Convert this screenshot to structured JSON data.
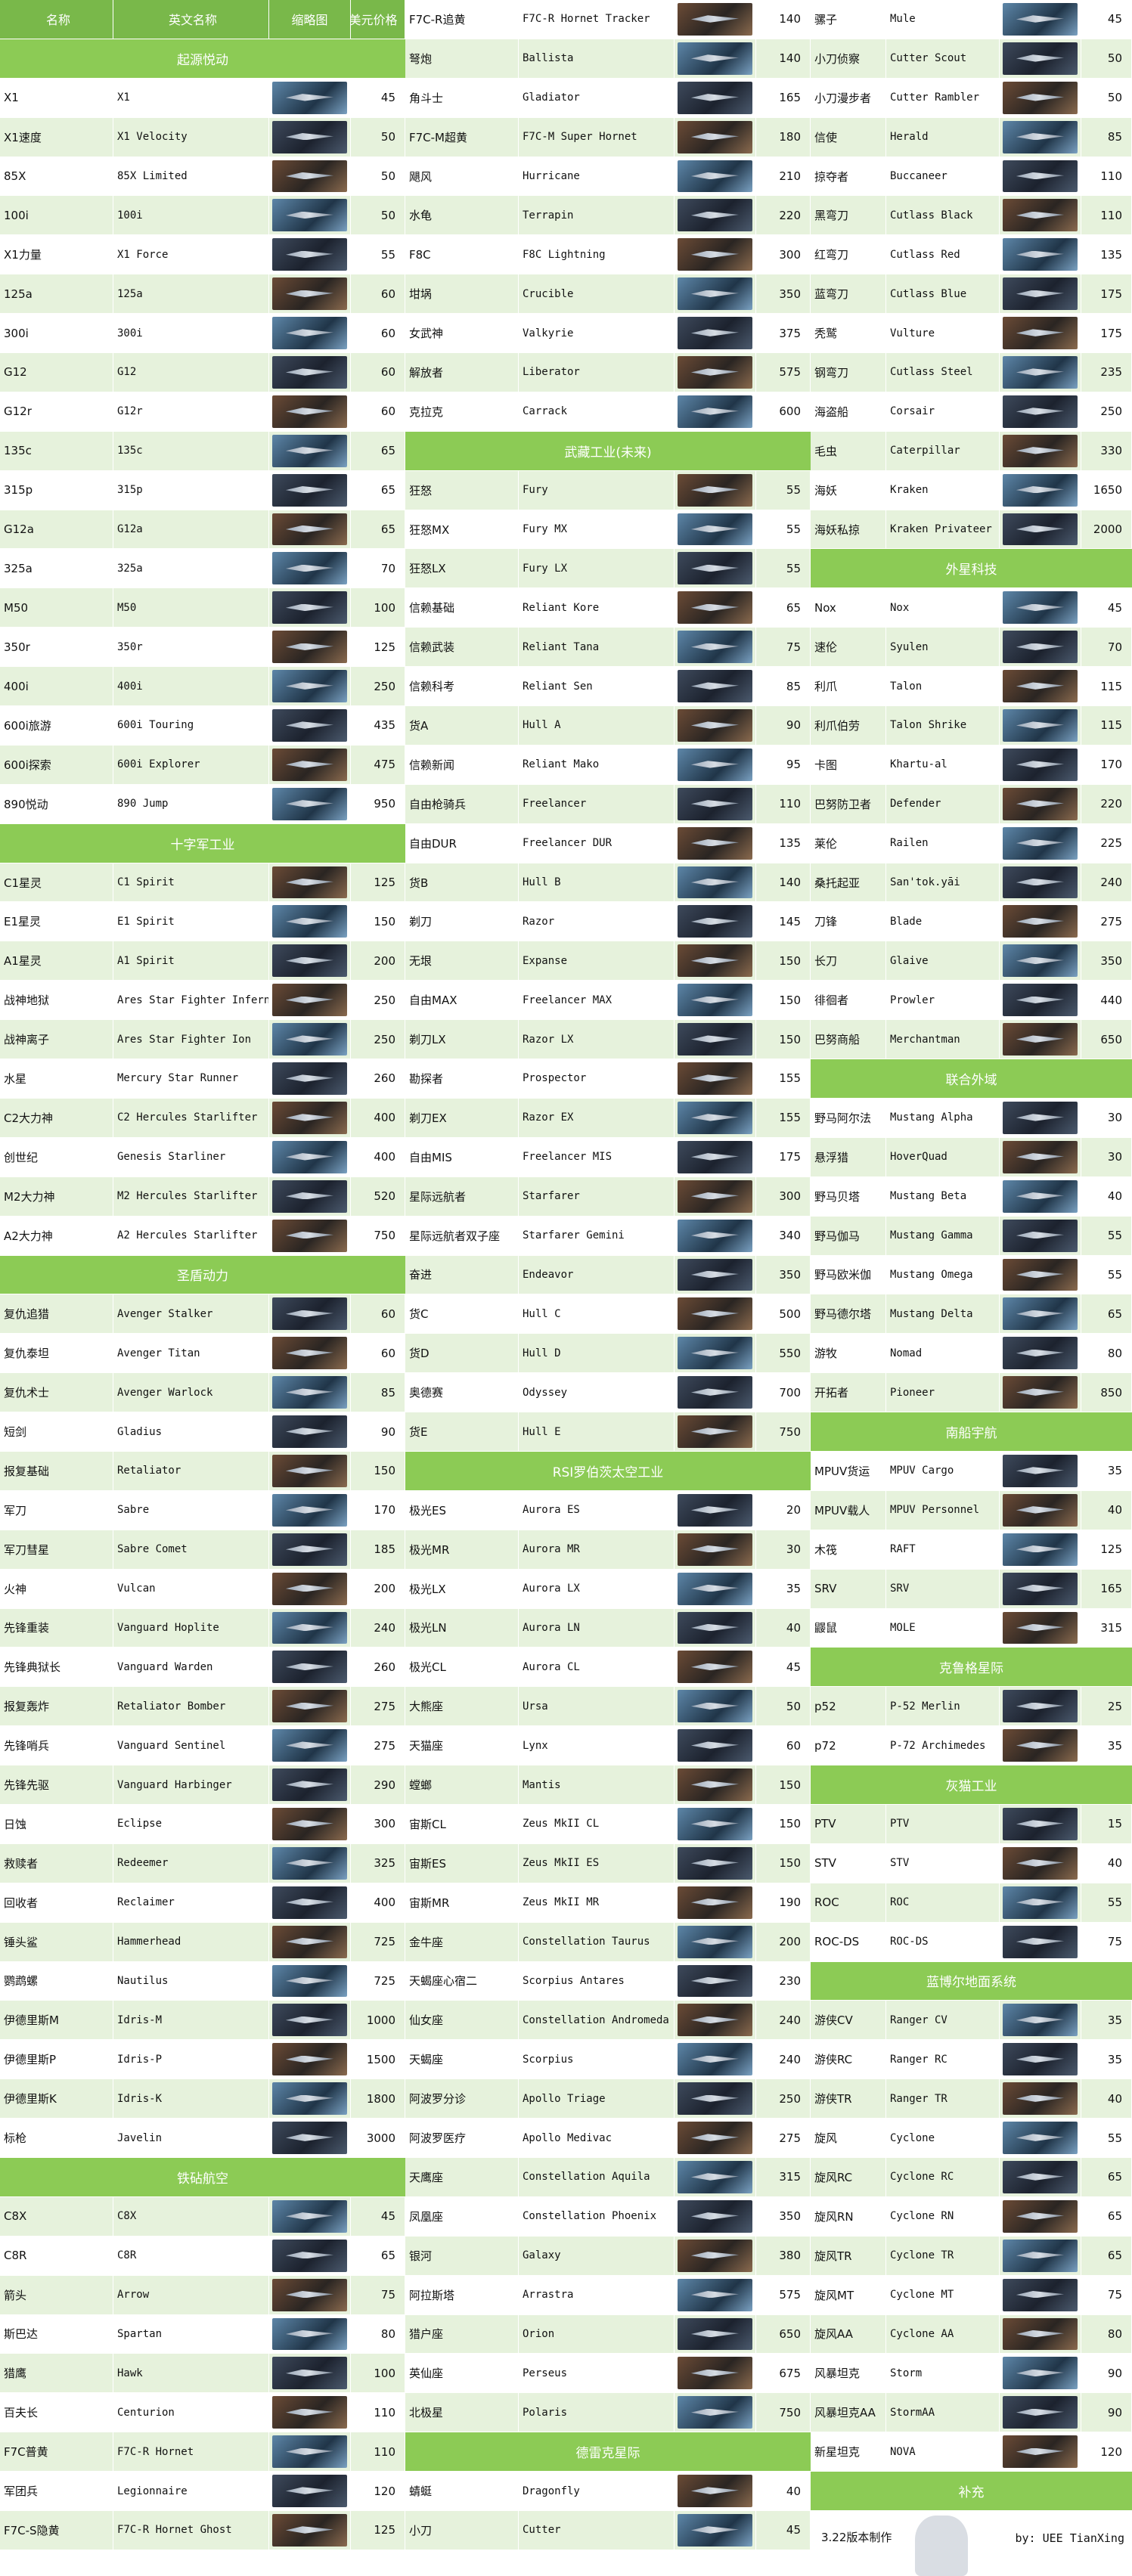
{
  "header": {
    "cn": "名称",
    "en": "英文名称",
    "thumb": "缩略图",
    "price": "美元价格"
  },
  "columns": [
    [
      {
        "t": "h"
      },
      {
        "t": "s",
        "label": "起源悦动"
      },
      {
        "t": "r",
        "cn": "X1",
        "en": "X1",
        "p": "45"
      },
      {
        "t": "r",
        "cn": "X1速度",
        "en": "X1 Velocity",
        "p": "50"
      },
      {
        "t": "r",
        "cn": "85X",
        "en": "85X Limited",
        "p": "50"
      },
      {
        "t": "r",
        "cn": "100i",
        "en": "100i",
        "p": "50"
      },
      {
        "t": "r",
        "cn": "X1力量",
        "en": "X1 Force",
        "p": "55"
      },
      {
        "t": "r",
        "cn": "125a",
        "en": "125a",
        "p": "60"
      },
      {
        "t": "r",
        "cn": "300i",
        "en": "300i",
        "p": "60"
      },
      {
        "t": "r",
        "cn": "G12",
        "en": "G12",
        "p": "60"
      },
      {
        "t": "r",
        "cn": "G12r",
        "en": "G12r",
        "p": "60"
      },
      {
        "t": "r",
        "cn": "135c",
        "en": "135c",
        "p": "65"
      },
      {
        "t": "r",
        "cn": "315p",
        "en": "315p",
        "p": "65"
      },
      {
        "t": "r",
        "cn": "G12a",
        "en": "G12a",
        "p": "65"
      },
      {
        "t": "r",
        "cn": "325a",
        "en": "325a",
        "p": "70"
      },
      {
        "t": "r",
        "cn": "M50",
        "en": "M50",
        "p": "100"
      },
      {
        "t": "r",
        "cn": "350r",
        "en": "350r",
        "p": "125"
      },
      {
        "t": "r",
        "cn": "400i",
        "en": "400i",
        "p": "250"
      },
      {
        "t": "r",
        "cn": "600i旅游",
        "en": "600i Touring",
        "p": "435"
      },
      {
        "t": "r",
        "cn": "600i探索",
        "en": "600i Explorer",
        "p": "475"
      },
      {
        "t": "r",
        "cn": "890悦动",
        "en": "890 Jump",
        "p": "950"
      },
      {
        "t": "s",
        "label": "十字军工业"
      },
      {
        "t": "r",
        "cn": "C1星灵",
        "en": "C1 Spirit",
        "p": "125"
      },
      {
        "t": "r",
        "cn": "E1星灵",
        "en": "E1 Spirit",
        "p": "150"
      },
      {
        "t": "r",
        "cn": "A1星灵",
        "en": "A1 Spirit",
        "p": "200"
      },
      {
        "t": "r",
        "cn": "战神地狱",
        "en": "Ares Star Fighter Inferno",
        "p": "250"
      },
      {
        "t": "r",
        "cn": "战神离子",
        "en": "Ares Star Fighter Ion",
        "p": "250"
      },
      {
        "t": "r",
        "cn": "水星",
        "en": "Mercury Star Runner",
        "p": "260"
      },
      {
        "t": "r",
        "cn": "C2大力神",
        "en": "C2 Hercules Starlifter",
        "p": "400"
      },
      {
        "t": "r",
        "cn": "创世纪",
        "en": "Genesis Starliner",
        "p": "400"
      },
      {
        "t": "r",
        "cn": "M2大力神",
        "en": "M2 Hercules Starlifter",
        "p": "520"
      },
      {
        "t": "r",
        "cn": "A2大力神",
        "en": "A2 Hercules Starlifter",
        "p": "750"
      },
      {
        "t": "s",
        "label": "圣盾动力"
      },
      {
        "t": "r",
        "cn": "复仇追猎",
        "en": "Avenger Stalker",
        "p": "60"
      },
      {
        "t": "r",
        "cn": "复仇泰坦",
        "en": "Avenger Titan",
        "p": "60"
      },
      {
        "t": "r",
        "cn": "复仇术士",
        "en": "Avenger Warlock",
        "p": "85"
      },
      {
        "t": "r",
        "cn": "短剑",
        "en": "Gladius",
        "p": "90"
      },
      {
        "t": "r",
        "cn": "报复基础",
        "en": "Retaliator",
        "p": "150"
      },
      {
        "t": "r",
        "cn": "军刀",
        "en": "Sabre",
        "p": "170"
      },
      {
        "t": "r",
        "cn": "军刀彗星",
        "en": "Sabre Comet",
        "p": "185"
      },
      {
        "t": "r",
        "cn": "火神",
        "en": "Vulcan",
        "p": "200"
      },
      {
        "t": "r",
        "cn": "先锋重装",
        "en": "Vanguard Hoplite",
        "p": "240"
      },
      {
        "t": "r",
        "cn": "先锋典狱长",
        "en": "Vanguard Warden",
        "p": "260"
      },
      {
        "t": "r",
        "cn": "报复轰炸",
        "en": "Retaliator Bomber",
        "p": "275"
      },
      {
        "t": "r",
        "cn": "先锋哨兵",
        "en": "Vanguard Sentinel",
        "p": "275"
      },
      {
        "t": "r",
        "cn": "先锋先驱",
        "en": "Vanguard Harbinger",
        "p": "290"
      },
      {
        "t": "r",
        "cn": "日蚀",
        "en": "Eclipse",
        "p": "300"
      },
      {
        "t": "r",
        "cn": "救赎者",
        "en": "Redeemer",
        "p": "325"
      },
      {
        "t": "r",
        "cn": "回收者",
        "en": "Reclaimer",
        "p": "400"
      },
      {
        "t": "r",
        "cn": "锤头鲨",
        "en": "Hammerhead",
        "p": "725"
      },
      {
        "t": "r",
        "cn": "鹦鹉螺",
        "en": "Nautilus",
        "p": "725"
      },
      {
        "t": "r",
        "cn": "伊德里斯M",
        "en": "Idris-M",
        "p": "1000"
      },
      {
        "t": "r",
        "cn": "伊德里斯P",
        "en": "Idris-P",
        "p": "1500"
      },
      {
        "t": "r",
        "cn": "伊德里斯K",
        "en": "Idris-K",
        "p": "1800"
      },
      {
        "t": "r",
        "cn": "标枪",
        "en": "Javelin",
        "p": "3000"
      },
      {
        "t": "s",
        "label": "铁砧航空"
      },
      {
        "t": "r",
        "cn": "C8X",
        "en": "C8X",
        "p": "45"
      },
      {
        "t": "r",
        "cn": "C8R",
        "en": "C8R",
        "p": "65"
      },
      {
        "t": "r",
        "cn": "箭头",
        "en": "Arrow",
        "p": "75"
      },
      {
        "t": "r",
        "cn": "斯巴达",
        "en": "Spartan",
        "p": "80"
      },
      {
        "t": "r",
        "cn": "猎鹰",
        "en": "Hawk",
        "p": "100"
      },
      {
        "t": "r",
        "cn": "百夫长",
        "en": "Centurion",
        "p": "110"
      },
      {
        "t": "r",
        "cn": "F7C普黄",
        "en": "F7C-R Hornet",
        "p": "110"
      },
      {
        "t": "r",
        "cn": "军团兵",
        "en": "Legionnaire",
        "p": "120"
      },
      {
        "t": "r",
        "cn": "F7C-S隐黄",
        "en": "F7C-R Hornet Ghost",
        "p": "125"
      }
    ],
    [
      {
        "t": "r",
        "cn": "F7C-R追黄",
        "en": "F7C-R Hornet Tracker",
        "p": "140"
      },
      {
        "t": "r",
        "cn": "弩炮",
        "en": "Ballista",
        "p": "140"
      },
      {
        "t": "r",
        "cn": "角斗士",
        "en": "Gladiator",
        "p": "165"
      },
      {
        "t": "r",
        "cn": "F7C-M超黄",
        "en": "F7C-M Super Hornet",
        "p": "180"
      },
      {
        "t": "r",
        "cn": "飓风",
        "en": "Hurricane",
        "p": "210"
      },
      {
        "t": "r",
        "cn": "水龟",
        "en": "Terrapin",
        "p": "220"
      },
      {
        "t": "r",
        "cn": "F8C",
        "en": "F8C Lightning",
        "p": "300"
      },
      {
        "t": "r",
        "cn": "坩埚",
        "en": "Crucible",
        "p": "350"
      },
      {
        "t": "r",
        "cn": "女武神",
        "en": "Valkyrie",
        "p": "375"
      },
      {
        "t": "r",
        "cn": "解放者",
        "en": "Liberator",
        "p": "575"
      },
      {
        "t": "r",
        "cn": "克拉克",
        "en": "Carrack",
        "p": "600"
      },
      {
        "t": "s",
        "label": "武藏工业(未来)"
      },
      {
        "t": "r",
        "cn": "狂怒",
        "en": "Fury",
        "p": "55"
      },
      {
        "t": "r",
        "cn": "狂怒MX",
        "en": "Fury MX",
        "p": "55"
      },
      {
        "t": "r",
        "cn": "狂怒LX",
        "en": "Fury LX",
        "p": "55"
      },
      {
        "t": "r",
        "cn": "信赖基础",
        "en": "Reliant Kore",
        "p": "65"
      },
      {
        "t": "r",
        "cn": "信赖武装",
        "en": "Reliant Tana",
        "p": "75"
      },
      {
        "t": "r",
        "cn": "信赖科考",
        "en": "Reliant Sen",
        "p": "85"
      },
      {
        "t": "r",
        "cn": "货A",
        "en": "Hull A",
        "p": "90"
      },
      {
        "t": "r",
        "cn": "信赖新闻",
        "en": "Reliant Mako",
        "p": "95"
      },
      {
        "t": "r",
        "cn": "自由枪骑兵",
        "en": "Freelancer",
        "p": "110"
      },
      {
        "t": "r",
        "cn": "自由DUR",
        "en": "Freelancer DUR",
        "p": "135"
      },
      {
        "t": "r",
        "cn": "货B",
        "en": "Hull B",
        "p": "140"
      },
      {
        "t": "r",
        "cn": "剃刀",
        "en": "Razor",
        "p": "145"
      },
      {
        "t": "r",
        "cn": "无垠",
        "en": "Expanse",
        "p": "150"
      },
      {
        "t": "r",
        "cn": "自由MAX",
        "en": "Freelancer MAX",
        "p": "150"
      },
      {
        "t": "r",
        "cn": "剃刀LX",
        "en": "Razor LX",
        "p": "150"
      },
      {
        "t": "r",
        "cn": "勘探者",
        "en": "Prospector",
        "p": "155"
      },
      {
        "t": "r",
        "cn": "剃刀EX",
        "en": "Razor EX",
        "p": "155"
      },
      {
        "t": "r",
        "cn": "自由MIS",
        "en": "Freelancer MIS",
        "p": "175"
      },
      {
        "t": "r",
        "cn": "星际远航者",
        "en": "Starfarer",
        "p": "300"
      },
      {
        "t": "r",
        "cn": "星际远航者双子座",
        "en": "Starfarer Gemini",
        "p": "340"
      },
      {
        "t": "r",
        "cn": "奋进",
        "en": "Endeavor",
        "p": "350"
      },
      {
        "t": "r",
        "cn": "货C",
        "en": "Hull C",
        "p": "500"
      },
      {
        "t": "r",
        "cn": "货D",
        "en": "Hull D",
        "p": "550"
      },
      {
        "t": "r",
        "cn": "奥德赛",
        "en": "Odyssey",
        "p": "700"
      },
      {
        "t": "r",
        "cn": "货E",
        "en": "Hull E",
        "p": "750"
      },
      {
        "t": "s",
        "label": "RSI罗伯茨太空工业"
      },
      {
        "t": "r",
        "cn": "极光ES",
        "en": "Aurora ES",
        "p": "20"
      },
      {
        "t": "r",
        "cn": "极光MR",
        "en": "Aurora MR",
        "p": "30"
      },
      {
        "t": "r",
        "cn": "极光LX",
        "en": "Aurora LX",
        "p": "35"
      },
      {
        "t": "r",
        "cn": "极光LN",
        "en": "Aurora LN",
        "p": "40"
      },
      {
        "t": "r",
        "cn": "极光CL",
        "en": "Aurora CL",
        "p": "45"
      },
      {
        "t": "r",
        "cn": "大熊座",
        "en": "Ursa",
        "p": "50"
      },
      {
        "t": "r",
        "cn": "天猫座",
        "en": "Lynx",
        "p": "60"
      },
      {
        "t": "r",
        "cn": "螳螂",
        "en": "Mantis",
        "p": "150"
      },
      {
        "t": "r",
        "cn": "宙斯CL",
        "en": "Zeus MkII CL",
        "p": "150"
      },
      {
        "t": "r",
        "cn": "宙斯ES",
        "en": "Zeus MkII ES",
        "p": "150"
      },
      {
        "t": "r",
        "cn": "宙斯MR",
        "en": "Zeus MkII MR",
        "p": "190"
      },
      {
        "t": "r",
        "cn": "金牛座",
        "en": "Constellation Taurus",
        "p": "200"
      },
      {
        "t": "r",
        "cn": "天蝎座心宿二",
        "en": "Scorpius Antares",
        "p": "230"
      },
      {
        "t": "r",
        "cn": "仙女座",
        "en": "Constellation Andromeda",
        "p": "240"
      },
      {
        "t": "r",
        "cn": "天蝎座",
        "en": "Scorpius",
        "p": "240"
      },
      {
        "t": "r",
        "cn": "阿波罗分诊",
        "en": "Apollo Triage",
        "p": "250"
      },
      {
        "t": "r",
        "cn": "阿波罗医疗",
        "en": "Apollo Medivac",
        "p": "275"
      },
      {
        "t": "r",
        "cn": "天鹰座",
        "en": "Constellation Aquila",
        "p": "315"
      },
      {
        "t": "r",
        "cn": "凤凰座",
        "en": "Constellation Phoenix",
        "p": "350"
      },
      {
        "t": "r",
        "cn": "银河",
        "en": "Galaxy",
        "p": "380"
      },
      {
        "t": "r",
        "cn": "阿拉斯塔",
        "en": "Arrastra",
        "p": "575"
      },
      {
        "t": "r",
        "cn": "猎户座",
        "en": "Orion",
        "p": "650"
      },
      {
        "t": "r",
        "cn": "英仙座",
        "en": "Perseus",
        "p": "675"
      },
      {
        "t": "r",
        "cn": "北极星",
        "en": "Polaris",
        "p": "750"
      },
      {
        "t": "s",
        "label": "德雷克星际"
      },
      {
        "t": "r",
        "cn": "蜻蜓",
        "en": "Dragonfly",
        "p": "40"
      },
      {
        "t": "r",
        "cn": "小刀",
        "en": "Cutter",
        "p": "45"
      }
    ],
    [
      {
        "t": "r",
        "cn": "骡子",
        "en": "Mule",
        "p": "45"
      },
      {
        "t": "r",
        "cn": "小刀侦察",
        "en": "Cutter Scout",
        "p": "50"
      },
      {
        "t": "r",
        "cn": "小刀漫步者",
        "en": "Cutter Rambler",
        "p": "50"
      },
      {
        "t": "r",
        "cn": "信使",
        "en": "Herald",
        "p": "85"
      },
      {
        "t": "r",
        "cn": "掠夺者",
        "en": "Buccaneer",
        "p": "110"
      },
      {
        "t": "r",
        "cn": "黑弯刀",
        "en": "Cutlass Black",
        "p": "110"
      },
      {
        "t": "r",
        "cn": "红弯刀",
        "en": "Cutlass Red",
        "p": "135"
      },
      {
        "t": "r",
        "cn": "蓝弯刀",
        "en": "Cutlass Blue",
        "p": "175"
      },
      {
        "t": "r",
        "cn": "秃鹫",
        "en": "Vulture",
        "p": "175"
      },
      {
        "t": "r",
        "cn": "钢弯刀",
        "en": "Cutlass Steel",
        "p": "235"
      },
      {
        "t": "r",
        "cn": "海盗船",
        "en": "Corsair",
        "p": "250"
      },
      {
        "t": "r",
        "cn": "毛虫",
        "en": "Caterpillar",
        "p": "330"
      },
      {
        "t": "r",
        "cn": "海妖",
        "en": "Kraken",
        "p": "1650"
      },
      {
        "t": "r",
        "cn": "海妖私掠",
        "en": "Kraken Privateer",
        "p": "2000"
      },
      {
        "t": "s",
        "label": "外星科技"
      },
      {
        "t": "r",
        "cn": "Nox",
        "en": "Nox",
        "p": "45"
      },
      {
        "t": "r",
        "cn": "速伦",
        "en": "Syulen",
        "p": "70"
      },
      {
        "t": "r",
        "cn": "利爪",
        "en": "Talon",
        "p": "115"
      },
      {
        "t": "r",
        "cn": "利爪伯劳",
        "en": "Talon Shrike",
        "p": "115"
      },
      {
        "t": "r",
        "cn": "卡图",
        "en": "Khartu-al",
        "p": "170"
      },
      {
        "t": "r",
        "cn": "巴努防卫者",
        "en": "Defender",
        "p": "220"
      },
      {
        "t": "r",
        "cn": "莱伦",
        "en": "Railen",
        "p": "225"
      },
      {
        "t": "r",
        "cn": "桑托起亚",
        "en": "San'tok.yāi",
        "p": "240"
      },
      {
        "t": "r",
        "cn": "刀锋",
        "en": "Blade",
        "p": "275"
      },
      {
        "t": "r",
        "cn": "长刀",
        "en": "Glaive",
        "p": "350"
      },
      {
        "t": "r",
        "cn": "徘徊者",
        "en": "Prowler",
        "p": "440"
      },
      {
        "t": "r",
        "cn": "巴努商船",
        "en": "Merchantman",
        "p": "650"
      },
      {
        "t": "s",
        "label": "联合外域"
      },
      {
        "t": "r",
        "cn": "野马阿尔法",
        "en": "Mustang Alpha",
        "p": "30"
      },
      {
        "t": "r",
        "cn": "悬浮猎",
        "en": "HoverQuad",
        "p": "30"
      },
      {
        "t": "r",
        "cn": "野马贝塔",
        "en": "Mustang Beta",
        "p": "40"
      },
      {
        "t": "r",
        "cn": "野马伽马",
        "en": "Mustang Gamma",
        "p": "55"
      },
      {
        "t": "r",
        "cn": "野马欧米伽",
        "en": "Mustang Omega",
        "p": "55"
      },
      {
        "t": "r",
        "cn": "野马德尔塔",
        "en": "Mustang Delta",
        "p": "65"
      },
      {
        "t": "r",
        "cn": "游牧",
        "en": "Nomad",
        "p": "80"
      },
      {
        "t": "r",
        "cn": "开拓者",
        "en": "Pioneer",
        "p": "850"
      },
      {
        "t": "s",
        "label": "南船宇航"
      },
      {
        "t": "r",
        "cn": "MPUV货运",
        "en": "MPUV Cargo",
        "p": "35"
      },
      {
        "t": "r",
        "cn": "MPUV载人",
        "en": "MPUV Personnel",
        "p": "40"
      },
      {
        "t": "r",
        "cn": "木筏",
        "en": "RAFT",
        "p": "125"
      },
      {
        "t": "r",
        "cn": "SRV",
        "en": "SRV",
        "p": "165"
      },
      {
        "t": "r",
        "cn": "鼹鼠",
        "en": "MOLE",
        "p": "315"
      },
      {
        "t": "s",
        "label": "克鲁格星际"
      },
      {
        "t": "r",
        "cn": "p52",
        "en": "P-52 Merlin",
        "p": "25"
      },
      {
        "t": "r",
        "cn": "p72",
        "en": "P-72 Archimedes",
        "p": "35"
      },
      {
        "t": "s",
        "label": "灰猫工业"
      },
      {
        "t": "r",
        "cn": "PTV",
        "en": "PTV",
        "p": "15"
      },
      {
        "t": "r",
        "cn": "STV",
        "en": "STV",
        "p": "40"
      },
      {
        "t": "r",
        "cn": "ROC",
        "en": "ROC",
        "p": "55"
      },
      {
        "t": "r",
        "cn": "ROC-DS",
        "en": "ROC-DS",
        "p": "75"
      },
      {
        "t": "s",
        "label": "蓝博尔地面系统"
      },
      {
        "t": "r",
        "cn": "游侠CV",
        "en": "Ranger CV",
        "p": "35"
      },
      {
        "t": "r",
        "cn": "游侠RC",
        "en": "Ranger RC",
        "p": "35"
      },
      {
        "t": "r",
        "cn": "游侠TR",
        "en": "Ranger TR",
        "p": "40"
      },
      {
        "t": "r",
        "cn": "旋风",
        "en": "Cyclone",
        "p": "55"
      },
      {
        "t": "r",
        "cn": "旋风RC",
        "en": "Cyclone RC",
        "p": "65"
      },
      {
        "t": "r",
        "cn": "旋风RN",
        "en": "Cyclone RN",
        "p": "65"
      },
      {
        "t": "r",
        "cn": "旋风TR",
        "en": "Cyclone TR",
        "p": "65"
      },
      {
        "t": "r",
        "cn": "旋风MT",
        "en": "Cyclone MT",
        "p": "75"
      },
      {
        "t": "r",
        "cn": "旋风AA",
        "en": "Cyclone AA",
        "p": "80"
      },
      {
        "t": "r",
        "cn": "风暴坦克",
        "en": "Storm",
        "p": "90"
      },
      {
        "t": "r",
        "cn": "风暴坦克AA",
        "en": "StormAA",
        "p": "90"
      },
      {
        "t": "r",
        "cn": "新星坦克",
        "en": "NOVA",
        "p": "120"
      },
      {
        "t": "s",
        "label": "补充"
      }
    ]
  ],
  "footer": {
    "version": "3.22版本制作",
    "author": "by: UEE TianXing"
  }
}
